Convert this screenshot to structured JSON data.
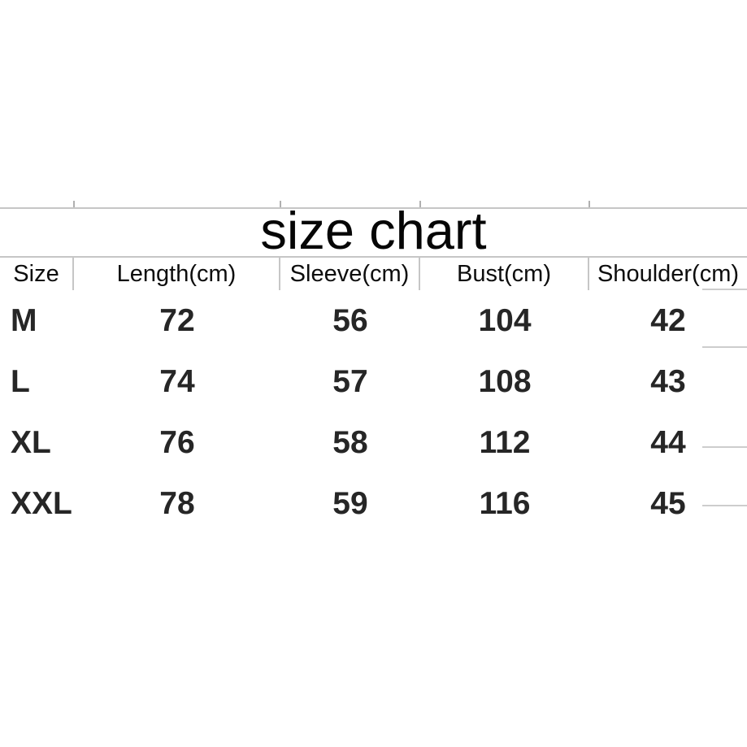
{
  "title": "size chart",
  "chart_data": {
    "type": "table",
    "title": "size chart",
    "columns": [
      "Size",
      "Length(cm)",
      "Sleeve(cm)",
      "Bust(cm)",
      "Shoulder(cm)"
    ],
    "rows": [
      [
        "M",
        "72",
        "56",
        "104",
        "42"
      ],
      [
        "L",
        "74",
        "57",
        "108",
        "43"
      ],
      [
        "XL",
        "76",
        "58",
        "112",
        "44"
      ],
      [
        "XXL",
        "78",
        "59",
        "116",
        "45"
      ]
    ],
    "units": "cm",
    "layout_hints": {
      "grid": "header row separators only; cropped grid stubs at top edge and right edge",
      "alignment": "size column left-aligned, all other cells centered"
    }
  },
  "colors": {
    "background": "#ffffff",
    "grid_line": "#c6c6c6",
    "tick_mark": "#b0b0b0",
    "edge_stub": "#cdcdcd",
    "title_text": "#060606",
    "header_text": "#0d0d0d",
    "data_text": "#262626"
  }
}
